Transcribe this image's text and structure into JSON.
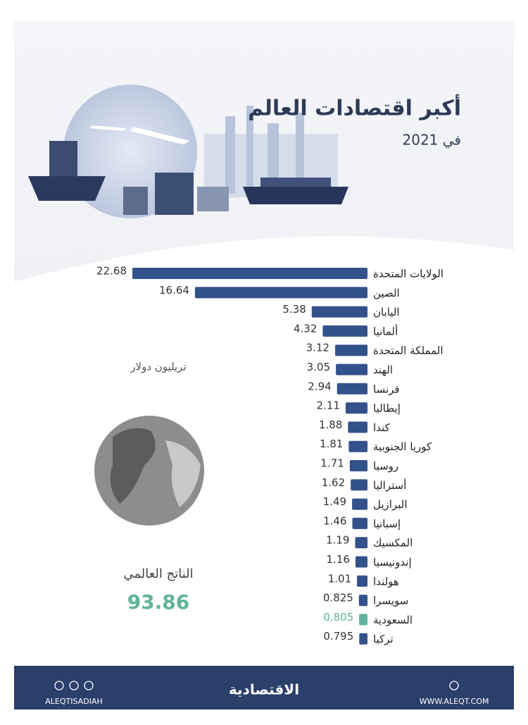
{
  "chart_data": {
    "type": "bar",
    "orientation": "horizontal",
    "title": "أكبر اقتصادات العالم",
    "subtitle": "في 2021",
    "unit_label": "تريليون دولار",
    "total_label": "الناتج العالمي",
    "total_value": 93.86,
    "categories": [
      "الولايات المتحدة",
      "الصين",
      "اليابان",
      "ألمانيا",
      "المملكة المتحدة",
      "الهند",
      "فرنسا",
      "إيطاليا",
      "كندا",
      "كوريا الجنوبية",
      "روسيا",
      "أستراليا",
      "البرازيل",
      "إسبانيا",
      "المكسيك",
      "إندونيسيا",
      "هولندا",
      "سويسرا",
      "السعودية",
      "تركيا"
    ],
    "values": [
      22.68,
      16.64,
      5.38,
      4.32,
      3.12,
      3.05,
      2.94,
      2.11,
      1.88,
      1.81,
      1.71,
      1.62,
      1.49,
      1.46,
      1.19,
      1.16,
      1.01,
      0.825,
      0.805,
      0.795
    ],
    "colors": [
      "#33518a",
      "#33518a",
      "#33518a",
      "#33518a",
      "#33518a",
      "#33518a",
      "#33518a",
      "#33518a",
      "#33518a",
      "#33518a",
      "#33518a",
      "#33518a",
      "#33518a",
      "#33518a",
      "#33518a",
      "#33518a",
      "#33518a",
      "#33518a",
      "#5fb39a",
      "#33518a"
    ]
  },
  "footer": {
    "brand": "الاقتصادية",
    "website": "WWW.ALEQT.COM",
    "handle": "ALEQTISADIAH"
  }
}
